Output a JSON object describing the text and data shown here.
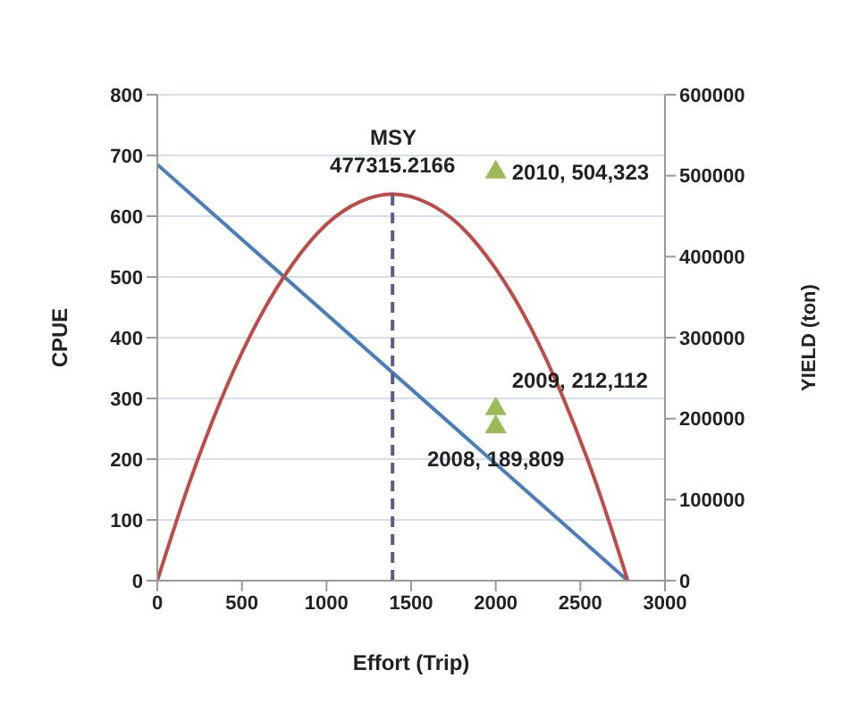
{
  "chart_data": {
    "type": "line",
    "xlabel": "Effort (Trip)",
    "ylabel": "CPUE",
    "y2label": "YIELD (ton)",
    "xlim": [
      0,
      3000
    ],
    "xticks": [
      0,
      500,
      1000,
      1500,
      2000,
      2500,
      3000
    ],
    "ylim": [
      0,
      800
    ],
    "yticks": [
      0,
      100,
      200,
      300,
      400,
      500,
      600,
      700,
      800
    ],
    "y2lim": [
      0,
      600000
    ],
    "y2ticks": [
      0,
      100000,
      200000,
      300000,
      400000,
      500000,
      600000
    ],
    "grid": "y",
    "legend": false,
    "marker": "none",
    "series": [
      {
        "color": "#4a7ebb",
        "x": [
          0,
          2780
        ],
        "values": [
          685,
          0
        ]
      },
      {
        "color": "#be4b48",
        "axis": "y2",
        "x": [
          0,
          200,
          400,
          600,
          800,
          1000,
          1200,
          1390,
          1600,
          1800,
          2000,
          2200,
          2400,
          2600,
          2780
        ],
        "values": [
          0,
          127000,
          235000,
          323000,
          391000,
          440000,
          468000,
          477315.2166,
          466000,
          436000,
          385000,
          315000,
          225000,
          116000,
          0
        ],
        "value_labels": [
          null,
          null,
          null,
          null,
          null,
          null,
          null,
          "477315.2166",
          null,
          null,
          null,
          null,
          null,
          null,
          null
        ]
      },
      {
        "color": "#5c5a8a",
        "axis": "y2",
        "line_style": "dashed",
        "x": [
          1390,
          1390
        ],
        "values": [
          0,
          477315.2166
        ]
      },
      {
        "type": "scatter",
        "color": "#9bbb59",
        "axis": "y2",
        "marker": "triangle",
        "x": [
          2000,
          2000,
          2000
        ],
        "values": [
          504323,
          212112,
          189809
        ],
        "value_labels": [
          "2010, 504,323",
          "2009, 212,112",
          "2008, 189,809"
        ]
      }
    ],
    "annotations": [
      "MSY"
    ]
  }
}
